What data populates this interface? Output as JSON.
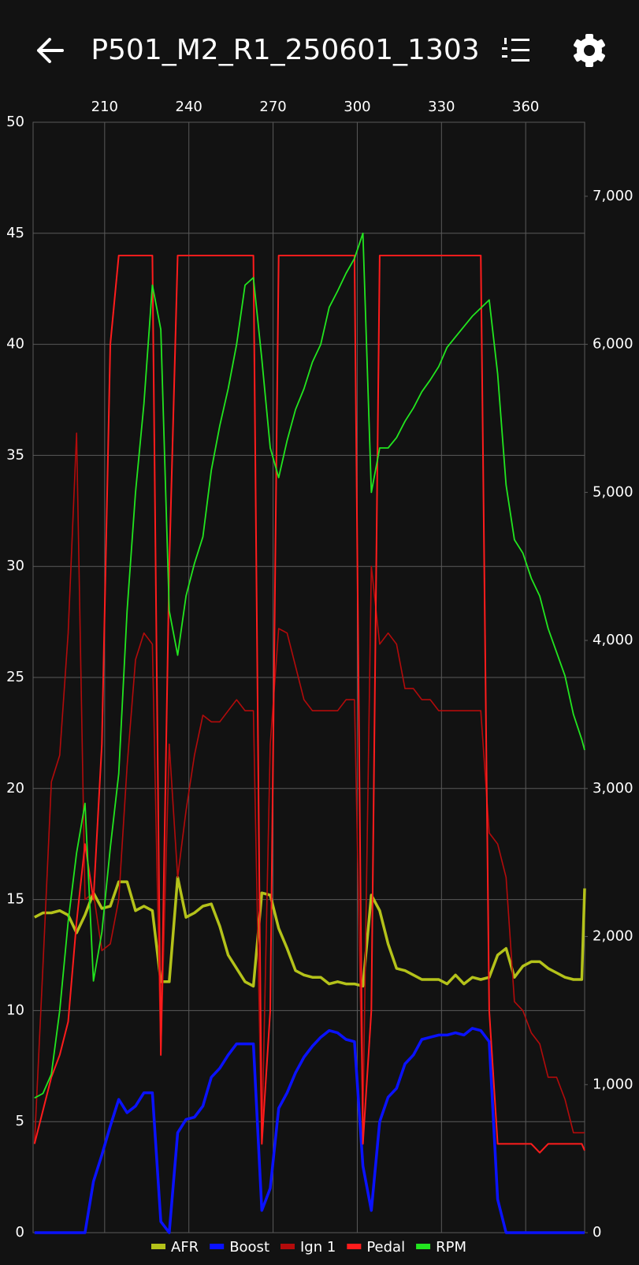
{
  "header": {
    "title": "P501_M2_R1_250601_1303"
  },
  "chart_data": {
    "type": "line",
    "x": [
      185,
      188,
      191,
      194,
      197,
      200,
      203,
      206,
      209,
      212,
      215,
      218,
      221,
      224,
      227,
      230,
      233,
      236,
      239,
      242,
      245,
      248,
      251,
      254,
      257,
      260,
      263,
      266,
      269,
      272,
      275,
      278,
      281,
      284,
      287,
      290,
      293,
      296,
      299,
      302,
      305,
      308,
      311,
      314,
      317,
      320,
      323,
      326,
      329,
      332,
      335,
      338,
      341,
      344,
      347,
      350,
      353,
      356,
      359,
      362,
      365,
      368,
      371,
      374,
      377,
      380,
      381
    ],
    "xlim": [
      184.5,
      381
    ],
    "xticks": [
      210,
      240,
      270,
      300,
      330,
      360
    ],
    "ylim": [
      0,
      50
    ],
    "yticks": [
      0,
      5,
      10,
      15,
      20,
      25,
      30,
      35,
      40,
      45,
      50
    ],
    "y2lim": [
      0,
      7500
    ],
    "y2ticks": [
      0,
      {
        "value": 1000,
        "label": "1,000"
      },
      {
        "value": 2000,
        "label": "2,000"
      },
      {
        "value": 3000,
        "label": "3,000"
      },
      {
        "value": 4000,
        "label": "4,000"
      },
      {
        "value": 5000,
        "label": "5,000"
      },
      {
        "value": 6000,
        "label": "6,000"
      },
      {
        "value": 7000,
        "label": "7,000"
      }
    ],
    "grid": true,
    "legend": "bottom",
    "series": [
      {
        "name": "AFR",
        "color": "#b4c21a",
        "values": [
          14.2,
          14.4,
          14.4,
          14.5,
          14.3,
          13.5,
          14.3,
          15.3,
          14.6,
          14.7,
          15.8,
          15.8,
          14.5,
          14.7,
          14.5,
          11.3,
          11.3,
          16,
          14.2,
          14.4,
          14.7,
          14.8,
          13.8,
          12.5,
          11.9,
          11.3,
          11.1,
          15.3,
          15.2,
          13.7,
          12.8,
          11.8,
          11.6,
          11.5,
          11.5,
          11.2,
          11.3,
          11.2,
          11.2,
          11.1,
          15.2,
          14.5,
          13,
          11.9,
          11.8,
          11.6,
          11.4,
          11.4,
          11.4,
          11.2,
          11.6,
          11.2,
          11.5,
          11.4,
          11.5,
          12.5,
          12.8,
          11.5,
          12,
          12.2,
          12.2,
          11.9,
          11.7,
          11.5,
          11.4,
          11.4,
          15.5
        ]
      },
      {
        "name": "Boost",
        "color": "#0a12ff",
        "values": [
          0,
          0,
          0,
          0,
          0,
          0,
          0,
          2.3,
          3.5,
          4.8,
          6,
          5.4,
          5.7,
          6.3,
          6.3,
          0.5,
          0,
          4.5,
          5.1,
          5.2,
          5.7,
          7,
          7.4,
          8,
          8.5,
          8.5,
          8.5,
          1,
          2,
          5.6,
          6.3,
          7.2,
          7.9,
          8.4,
          8.8,
          9.1,
          9,
          8.7,
          8.6,
          3,
          1,
          5,
          6.1,
          6.5,
          7.6,
          8,
          8.7,
          8.8,
          8.9,
          8.9,
          9,
          8.9,
          9.2,
          9.1,
          8.6,
          1.5,
          0,
          0,
          0,
          0,
          0,
          0,
          0,
          0,
          0,
          0,
          0
        ]
      },
      {
        "name": "Ign 1",
        "color": "#b30b0b",
        "values": [
          4,
          12,
          20.3,
          21.5,
          27,
          36,
          15,
          15.3,
          12.7,
          13,
          15,
          21,
          25.8,
          27,
          26.5,
          8,
          22,
          16,
          19,
          21.5,
          23.3,
          23,
          23,
          23.5,
          24,
          23.5,
          23.5,
          4,
          22,
          27.2,
          27,
          25.5,
          24,
          23.5,
          23.5,
          23.5,
          23.5,
          24,
          24,
          5,
          30,
          26.5,
          27,
          26.5,
          24.5,
          24.5,
          24,
          24,
          23.5,
          23.5,
          23.5,
          23.5,
          23.5,
          23.5,
          18,
          17.5,
          16,
          10.4,
          10,
          9,
          8.5,
          7,
          7,
          6,
          4.5,
          4.5,
          4.5
        ]
      },
      {
        "name": "Pedal",
        "color": "#ff1c1c",
        "values": [
          4,
          5.5,
          7,
          8,
          9.5,
          14,
          17.5,
          15,
          22,
          40,
          44,
          44,
          44,
          44,
          44,
          8,
          30,
          44,
          44,
          44,
          44,
          44,
          44,
          44,
          44,
          44,
          44,
          4,
          10,
          44,
          44,
          44,
          44,
          44,
          44,
          44,
          44,
          44,
          44,
          4,
          10,
          44,
          44,
          44,
          44,
          44,
          44,
          44,
          44,
          44,
          44,
          44,
          44,
          44,
          10,
          4,
          4,
          4,
          4,
          4,
          3.6,
          4,
          4,
          4,
          4,
          4,
          3.7
        ]
      },
      {
        "name": "RPM",
        "color": "#22e51f",
        "axis": "y2",
        "values": [
          910,
          940,
          1070,
          1500,
          2100,
          2565,
          2900,
          1700,
          2030,
          2600,
          3100,
          4200,
          5000,
          5600,
          6400,
          6100,
          4200,
          3900,
          4300,
          4520,
          4700,
          5150,
          5450,
          5700,
          6000,
          6400,
          6450,
          5900,
          5300,
          5100,
          5350,
          5560,
          5700,
          5880,
          6000,
          6250,
          6360,
          6480,
          6580,
          6750,
          5000,
          5300,
          5300,
          5370,
          5480,
          5570,
          5680,
          5760,
          5850,
          5980,
          6050,
          6120,
          6190,
          6245,
          6300,
          5800,
          5050,
          4680,
          4590,
          4420,
          4300,
          4080,
          3920,
          3760,
          3500,
          3330,
          3260
        ]
      }
    ]
  }
}
